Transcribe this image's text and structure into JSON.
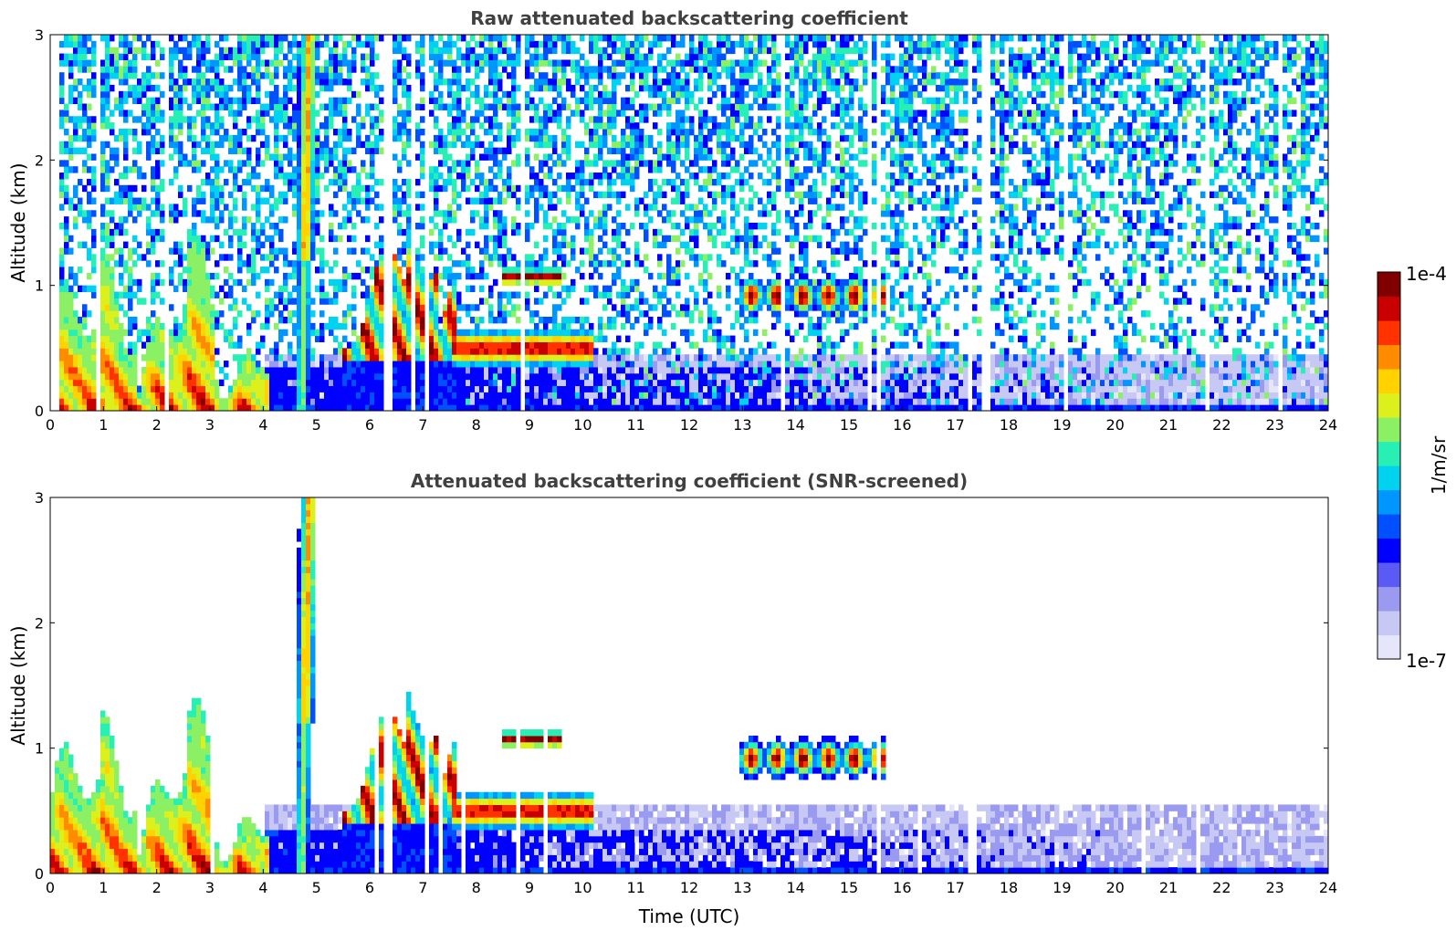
{
  "chart_data": [
    {
      "type": "heatmap",
      "title": "Raw attenuated backscattering coefficient",
      "xlabel": "",
      "ylabel": "Altitude (km)",
      "xlim": [
        0,
        24
      ],
      "ylim": [
        0,
        3
      ],
      "xticks": [
        "0",
        "1",
        "2",
        "3",
        "4",
        "5",
        "6",
        "7",
        "8",
        "9",
        "10",
        "11",
        "12",
        "13",
        "14",
        "15",
        "16",
        "17",
        "18",
        "19",
        "20",
        "21",
        "22",
        "23",
        "24"
      ],
      "yticks": [
        "0",
        "1",
        "2",
        "3"
      ],
      "screened": false,
      "features": [
        {
          "t0": 0.0,
          "t1": 4.1,
          "z_top": 1.2,
          "level": "high",
          "kind": "boundary-layer aerosol/cloud"
        },
        {
          "t0": 4.5,
          "t1": 5.0,
          "z_top": 3.0,
          "level": "medium",
          "kind": "vertical plume"
        },
        {
          "t0": 5.5,
          "t1": 7.5,
          "z_top": 1.5,
          "level": "high",
          "kind": "broken cloud"
        },
        {
          "t0": 8.5,
          "t1": 9.6,
          "z_bottom": 1.0,
          "z_top": 1.15,
          "level": "high",
          "kind": "cloud layer"
        },
        {
          "t0": 13.0,
          "t1": 15.6,
          "z_bottom": 0.75,
          "z_top": 1.1,
          "level": "high",
          "kind": "cloud layer"
        }
      ]
    },
    {
      "type": "heatmap",
      "title": "Attenuated backscattering coefficient (SNR-screened)",
      "xlabel": "Time (UTC)",
      "ylabel": "Altitude (km)",
      "xlim": [
        0,
        24
      ],
      "ylim": [
        0,
        3
      ],
      "xticks": [
        "0",
        "1",
        "2",
        "3",
        "4",
        "5",
        "6",
        "7",
        "8",
        "9",
        "10",
        "11",
        "12",
        "13",
        "14",
        "15",
        "16",
        "17",
        "18",
        "19",
        "20",
        "21",
        "22",
        "23",
        "24"
      ],
      "yticks": [
        "0",
        "1",
        "2",
        "3"
      ],
      "screened": true
    }
  ],
  "colorbar": {
    "label": "1/m/sr",
    "max_label": "1e-4",
    "min_label": "1e-7",
    "scale": "log",
    "range": [
      1e-07,
      0.0001
    ],
    "colormap": [
      "#e6e6fa",
      "#c8c8f5",
      "#9a9af0",
      "#5a5af5",
      "#0000ff",
      "#0050ff",
      "#0096ff",
      "#00d2f0",
      "#28f0b4",
      "#8cf064",
      "#dcf01e",
      "#ffd200",
      "#ff8c00",
      "#ff3200",
      "#c80000",
      "#800000"
    ]
  }
}
